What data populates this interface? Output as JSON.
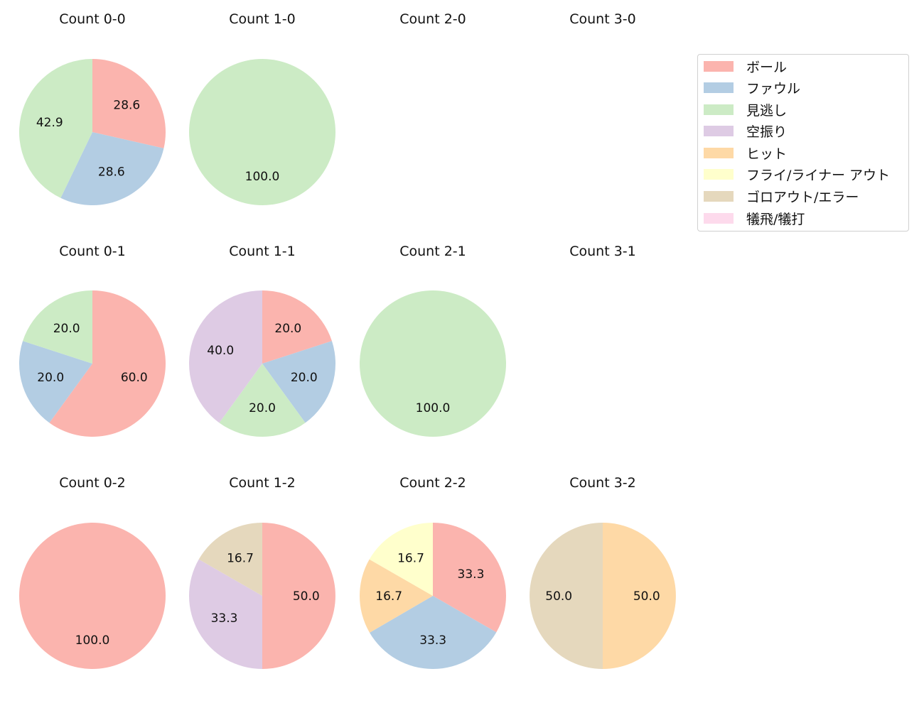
{
  "chart_data": {
    "type": "pie",
    "layout": {
      "rows": 3,
      "cols": 4,
      "start_angle_deg": 90,
      "direction": "clockwise",
      "legend_position": "upper right"
    },
    "categories": [
      "ボール",
      "ファウル",
      "見逃し",
      "空振り",
      "ヒット",
      "フライ/ライナー アウト",
      "ゴロアウト/エラー",
      "犠飛/犠打"
    ],
    "colors": [
      "#FBB4AE",
      "#B3CDE3",
      "#CCEBC5",
      "#DECBE4",
      "#FED9A6",
      "#FFFFCC",
      "#E5D8BD",
      "#FDDAEC"
    ],
    "charts": [
      {
        "title": "Count 0-0",
        "row": 0,
        "col": 0,
        "values": {
          "ボール": 28.6,
          "ファウル": 28.6,
          "見逃し": 42.9
        }
      },
      {
        "title": "Count 1-0",
        "row": 0,
        "col": 1,
        "values": {
          "見逃し": 100.0
        }
      },
      {
        "title": "Count 2-0",
        "row": 0,
        "col": 2,
        "values": {}
      },
      {
        "title": "Count 3-0",
        "row": 0,
        "col": 3,
        "values": {}
      },
      {
        "title": "Count 0-1",
        "row": 1,
        "col": 0,
        "values": {
          "ボール": 60.0,
          "ファウル": 20.0,
          "見逃し": 20.0
        }
      },
      {
        "title": "Count 1-1",
        "row": 1,
        "col": 1,
        "values": {
          "ボール": 20.0,
          "ファウル": 20.0,
          "見逃し": 20.0,
          "空振り": 40.0
        }
      },
      {
        "title": "Count 2-1",
        "row": 1,
        "col": 2,
        "values": {
          "見逃し": 100.0
        }
      },
      {
        "title": "Count 3-1",
        "row": 1,
        "col": 3,
        "values": {}
      },
      {
        "title": "Count 0-2",
        "row": 2,
        "col": 0,
        "values": {
          "ボール": 100.0
        }
      },
      {
        "title": "Count 1-2",
        "row": 2,
        "col": 1,
        "values": {
          "ボール": 50.0,
          "空振り": 33.3,
          "ゴロアウト/エラー": 16.7
        }
      },
      {
        "title": "Count 2-2",
        "row": 2,
        "col": 2,
        "values": {
          "ボール": 33.3,
          "ファウル": 33.3,
          "ヒット": 16.7,
          "フライ/ライナー アウト": 16.7
        }
      },
      {
        "title": "Count 3-2",
        "row": 2,
        "col": 3,
        "values": {
          "ヒット": 50.0,
          "ゴロアウト/エラー": 50.0
        }
      }
    ]
  },
  "titles": [
    "Count 0-0",
    "Count 1-0",
    "Count 2-0",
    "Count 3-0",
    "Count 0-1",
    "Count 1-1",
    "Count 2-1",
    "Count 3-1",
    "Count 0-2",
    "Count 1-2",
    "Count 2-2",
    "Count 3-2"
  ],
  "legend": {
    "items": [
      {
        "label": "ボール",
        "color": "#FBB4AE"
      },
      {
        "label": "ファウル",
        "color": "#B3CDE3"
      },
      {
        "label": "見逃し",
        "color": "#CCEBC5"
      },
      {
        "label": "空振り",
        "color": "#DECBE4"
      },
      {
        "label": "ヒット",
        "color": "#FED9A6"
      },
      {
        "label": "フライ/ライナー アウト",
        "color": "#FFFFCC"
      },
      {
        "label": "ゴロアウト/エラー",
        "color": "#E5D8BD"
      },
      {
        "label": "犠飛/犠打",
        "color": "#FDDAEC"
      }
    ]
  }
}
